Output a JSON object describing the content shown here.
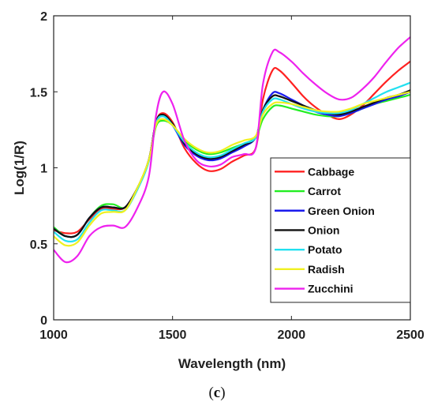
{
  "caption": {
    "open": "(",
    "letter": "c",
    "close": ")"
  },
  "chart_data": {
    "type": "line",
    "title": "",
    "xlabel": "Wavelength (nm)",
    "ylabel": "Log(1/R)",
    "xlim": [
      1000,
      2500
    ],
    "ylim": [
      0,
      2
    ],
    "xticks": [
      "1000",
      "1500",
      "2000",
      "2500"
    ],
    "yticks": [
      "0",
      "0.5",
      "1",
      "1.5",
      "2"
    ],
    "grid": false,
    "legend_position": "lower-right",
    "x": [
      1000,
      1050,
      1100,
      1150,
      1200,
      1250,
      1300,
      1350,
      1400,
      1430,
      1460,
      1500,
      1550,
      1600,
      1650,
      1700,
      1750,
      1800,
      1850,
      1880,
      1920,
      1950,
      2000,
      2050,
      2100,
      2150,
      2200,
      2250,
      2300,
      2350,
      2400,
      2450,
      2500
    ],
    "series": [
      {
        "name": "Cabbage",
        "color": "#ff2020",
        "values": [
          0.59,
          0.57,
          0.58,
          0.66,
          0.73,
          0.73,
          0.74,
          0.86,
          1.05,
          1.3,
          1.36,
          1.3,
          1.13,
          1.03,
          0.98,
          0.99,
          1.04,
          1.08,
          1.13,
          1.45,
          1.64,
          1.64,
          1.56,
          1.47,
          1.4,
          1.35,
          1.32,
          1.35,
          1.41,
          1.49,
          1.57,
          1.64,
          1.7
        ]
      },
      {
        "name": "Carrot",
        "color": "#22ee22",
        "values": [
          0.61,
          0.55,
          0.56,
          0.67,
          0.75,
          0.76,
          0.74,
          0.86,
          1.05,
          1.27,
          1.31,
          1.28,
          1.18,
          1.12,
          1.09,
          1.1,
          1.13,
          1.16,
          1.2,
          1.32,
          1.4,
          1.41,
          1.39,
          1.37,
          1.35,
          1.34,
          1.34,
          1.36,
          1.39,
          1.42,
          1.44,
          1.46,
          1.48
        ]
      },
      {
        "name": "Green Onion",
        "color": "#1a1aee",
        "values": [
          0.6,
          0.55,
          0.56,
          0.67,
          0.74,
          0.74,
          0.74,
          0.86,
          1.05,
          1.29,
          1.34,
          1.28,
          1.15,
          1.08,
          1.05,
          1.06,
          1.1,
          1.14,
          1.2,
          1.38,
          1.49,
          1.49,
          1.45,
          1.41,
          1.37,
          1.35,
          1.34,
          1.36,
          1.39,
          1.42,
          1.45,
          1.47,
          1.5
        ]
      },
      {
        "name": "Onion",
        "color": "#111111",
        "values": [
          0.6,
          0.55,
          0.56,
          0.67,
          0.74,
          0.74,
          0.74,
          0.86,
          1.05,
          1.3,
          1.35,
          1.29,
          1.16,
          1.09,
          1.06,
          1.07,
          1.11,
          1.15,
          1.2,
          1.38,
          1.47,
          1.47,
          1.44,
          1.41,
          1.38,
          1.36,
          1.35,
          1.37,
          1.4,
          1.43,
          1.46,
          1.48,
          1.51
        ]
      },
      {
        "name": "Potato",
        "color": "#22e0f0",
        "values": [
          0.58,
          0.52,
          0.53,
          0.64,
          0.72,
          0.72,
          0.72,
          0.85,
          1.04,
          1.29,
          1.34,
          1.28,
          1.17,
          1.1,
          1.07,
          1.08,
          1.12,
          1.16,
          1.2,
          1.37,
          1.45,
          1.45,
          1.42,
          1.39,
          1.37,
          1.36,
          1.36,
          1.38,
          1.42,
          1.46,
          1.5,
          1.53,
          1.56
        ]
      },
      {
        "name": "Radish",
        "color": "#f0f020",
        "values": [
          0.55,
          0.49,
          0.51,
          0.62,
          0.7,
          0.71,
          0.72,
          0.86,
          1.05,
          1.28,
          1.32,
          1.28,
          1.19,
          1.13,
          1.1,
          1.11,
          1.15,
          1.18,
          1.21,
          1.35,
          1.42,
          1.43,
          1.42,
          1.4,
          1.38,
          1.37,
          1.37,
          1.39,
          1.42,
          1.44,
          1.46,
          1.48,
          1.5
        ]
      },
      {
        "name": "Zucchini",
        "color": "#ee22ee",
        "values": [
          0.46,
          0.38,
          0.42,
          0.55,
          0.61,
          0.62,
          0.61,
          0.73,
          0.94,
          1.34,
          1.5,
          1.42,
          1.18,
          1.05,
          1.01,
          1.02,
          1.07,
          1.09,
          1.13,
          1.55,
          1.76,
          1.76,
          1.7,
          1.62,
          1.55,
          1.49,
          1.45,
          1.46,
          1.52,
          1.6,
          1.7,
          1.79,
          1.86
        ]
      }
    ]
  }
}
